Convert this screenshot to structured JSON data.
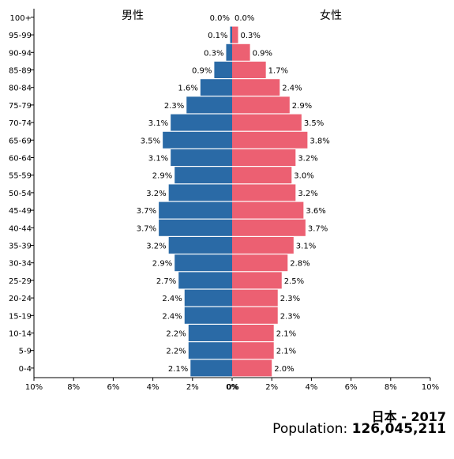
{
  "chart_data": {
    "type": "bar",
    "orientation": "horizontal",
    "categories": [
      "0-4",
      "5-9",
      "10-14",
      "15-19",
      "20-24",
      "25-29",
      "30-34",
      "35-39",
      "40-44",
      "45-49",
      "50-54",
      "55-59",
      "60-64",
      "65-69",
      "70-74",
      "75-79",
      "80-84",
      "85-89",
      "90-94",
      "95-99",
      "100+"
    ],
    "series": [
      {
        "name": "男性",
        "color": "#2a6aa6",
        "values": [
          2.1,
          2.2,
          2.2,
          2.4,
          2.4,
          2.7,
          2.9,
          3.2,
          3.7,
          3.7,
          3.2,
          2.9,
          3.1,
          3.5,
          3.1,
          2.3,
          1.6,
          0.9,
          0.3,
          0.1,
          0.0
        ],
        "labels": [
          "2.1%",
          "2.2%",
          "2.2%",
          "2.4%",
          "2.4%",
          "2.7%",
          "2.9%",
          "3.2%",
          "3.7%",
          "3.7%",
          "3.2%",
          "2.9%",
          "3.1%",
          "3.5%",
          "3.1%",
          "2.3%",
          "1.6%",
          "0.9%",
          "0.3%",
          "0.1%",
          "0.0%"
        ]
      },
      {
        "name": "女性",
        "color": "#ec6072",
        "values": [
          2.0,
          2.1,
          2.1,
          2.3,
          2.3,
          2.5,
          2.8,
          3.1,
          3.7,
          3.6,
          3.2,
          3.0,
          3.2,
          3.8,
          3.5,
          2.9,
          2.4,
          1.7,
          0.9,
          0.3,
          0.0
        ],
        "labels": [
          "2.0%",
          "2.1%",
          "2.1%",
          "2.3%",
          "2.3%",
          "2.5%",
          "2.8%",
          "3.1%",
          "3.7%",
          "3.6%",
          "3.2%",
          "3.0%",
          "3.2%",
          "3.8%",
          "3.5%",
          "2.9%",
          "2.4%",
          "1.7%",
          "0.9%",
          "0.3%",
          "0.0%"
        ]
      }
    ],
    "xlim": [
      -10,
      10
    ],
    "xticks": [
      -10,
      -8,
      -6,
      -4,
      -2,
      0,
      2,
      4,
      6,
      8,
      10
    ],
    "xtick_labels": [
      "10%",
      "8%",
      "6%",
      "4%",
      "2%",
      "0%",
      "2%",
      "4%",
      "6%",
      "8%",
      "10%"
    ],
    "grid": false
  },
  "footer": {
    "title": "日本 - 2017",
    "population_label": "Population:",
    "population_value": "126,045,211"
  }
}
